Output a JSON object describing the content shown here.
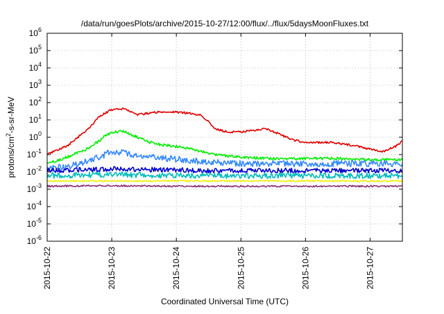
{
  "chart_data": {
    "type": "line",
    "title": "/data/run/goesPlots/archive/2015-10-27/12:00/flux/../flux/5daysMoonFluxes.txt",
    "xlabel": "Coordinated Universal Time (UTC)",
    "ylabel_parts": [
      "protons/cm",
      "2",
      "-s-sr-MeV"
    ],
    "x_range": [
      "2015-10-22 00:00",
      "2015-10-27 12:00"
    ],
    "x_ticks": [
      "2015-10-22",
      "2015-10-23",
      "2015-10-24",
      "2015-10-25",
      "2015-10-26",
      "2015-10-27"
    ],
    "y_scale": "log",
    "ylim": [
      1e-06,
      1000000.0
    ],
    "y_ticks": [
      {
        "base": "10",
        "exp": "-6"
      },
      {
        "base": "10",
        "exp": "-5"
      },
      {
        "base": "10",
        "exp": "-4"
      },
      {
        "base": "10",
        "exp": "-3"
      },
      {
        "base": "10",
        "exp": "-2"
      },
      {
        "base": "10",
        "exp": "-1"
      },
      {
        "base": "10",
        "exp": "0"
      },
      {
        "base": "10",
        "exp": "1"
      },
      {
        "base": "10",
        "exp": "2"
      },
      {
        "base": "10",
        "exp": "3"
      },
      {
        "base": "10",
        "exp": "4"
      },
      {
        "base": "10",
        "exp": "5"
      },
      {
        "base": "10",
        "exp": "6"
      }
    ],
    "grid": true,
    "series": [
      {
        "color": "#e00000",
        "x": [
          0.0,
          0.1,
          0.3,
          0.5,
          0.7,
          0.8,
          0.9,
          1.0,
          1.2,
          1.4,
          1.6,
          1.8,
          2.0,
          2.2,
          2.4,
          2.6,
          2.8,
          3.0,
          3.2,
          3.4,
          3.6,
          3.8,
          4.0,
          4.2,
          4.4,
          4.6,
          4.8,
          5.0,
          5.2,
          5.4,
          5.5
        ],
        "y": [
          0.1,
          0.15,
          0.3,
          1.2,
          5,
          15,
          25,
          40,
          45,
          20,
          25,
          30,
          28,
          25,
          18,
          3,
          2,
          2,
          2.5,
          3,
          1.5,
          0.7,
          0.5,
          0.5,
          0.5,
          0.4,
          0.3,
          0.2,
          0.15,
          0.3,
          0.6
        ]
      },
      {
        "color": "#00ee00",
        "x": [
          0.0,
          0.2,
          0.4,
          0.6,
          0.8,
          0.9,
          1.0,
          1.2,
          1.4,
          1.6,
          1.8,
          2.0,
          2.2,
          2.4,
          2.6,
          2.8,
          3.0,
          3.5,
          4.0,
          4.5,
          5.0,
          5.5
        ],
        "y": [
          0.03,
          0.05,
          0.1,
          0.2,
          0.6,
          1.2,
          2.0,
          2.2,
          1.0,
          0.5,
          0.35,
          0.3,
          0.22,
          0.15,
          0.1,
          0.08,
          0.07,
          0.06,
          0.06,
          0.06,
          0.05,
          0.05
        ]
      },
      {
        "color": "#3388ff",
        "x": [
          0.0,
          0.3,
          0.6,
          0.9,
          1.0,
          1.2,
          1.5,
          1.8,
          2.1,
          2.4,
          2.7,
          3.0,
          3.5,
          4.0,
          4.5,
          5.0,
          5.5
        ],
        "y": [
          0.015,
          0.02,
          0.04,
          0.1,
          0.15,
          0.12,
          0.08,
          0.06,
          0.05,
          0.04,
          0.035,
          0.03,
          0.03,
          0.03,
          0.03,
          0.03,
          0.03
        ]
      },
      {
        "color": "#0000cc",
        "x": [
          0.0,
          0.5,
          1.0,
          1.5,
          2.0,
          2.5,
          3.0,
          3.5,
          4.0,
          4.5,
          5.0,
          5.5
        ],
        "y": [
          0.012,
          0.013,
          0.015,
          0.014,
          0.013,
          0.012,
          0.012,
          0.012,
          0.012,
          0.012,
          0.012,
          0.012
        ]
      },
      {
        "color": "#00bbbb",
        "x": [
          0.0,
          1.0,
          2.0,
          3.0,
          4.0,
          5.0,
          5.5
        ],
        "y": [
          0.006,
          0.007,
          0.006,
          0.006,
          0.006,
          0.006,
          0.006
        ]
      },
      {
        "color": "#eeee00",
        "x": [
          0.0,
          1.0,
          2.0,
          3.0,
          4.0,
          5.0,
          5.5
        ],
        "y": [
          0.003,
          0.003,
          0.003,
          0.003,
          0.003,
          0.003,
          0.003
        ]
      },
      {
        "color": "#8b2d7a",
        "x": [
          0.0,
          1.0,
          2.0,
          3.0,
          4.0,
          5.0,
          5.5
        ],
        "y": [
          0.0015,
          0.0016,
          0.0015,
          0.0015,
          0.0015,
          0.0015,
          0.0015
        ]
      }
    ]
  }
}
